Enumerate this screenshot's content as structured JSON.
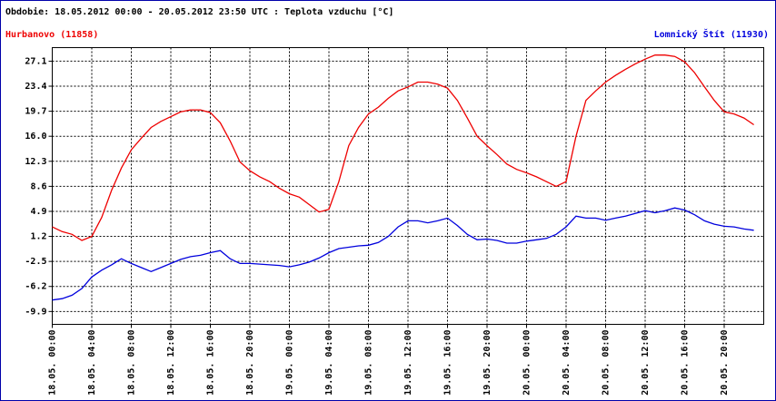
{
  "chart_data": {
    "type": "line",
    "title": "Obdobie: 18.05.2012 00:00 - 20.05.2012 23:50 UTC : Teplota vzduchu [°C]",
    "x": [
      "18.05. 00:00",
      "18.05. 01:00",
      "18.05. 02:00",
      "18.05. 03:00",
      "18.05. 04:00",
      "18.05. 05:00",
      "18.05. 06:00",
      "18.05. 07:00",
      "18.05. 08:00",
      "18.05. 09:00",
      "18.05. 10:00",
      "18.05. 11:00",
      "18.05. 12:00",
      "18.05. 13:00",
      "18.05. 14:00",
      "18.05. 15:00",
      "18.05. 16:00",
      "18.05. 17:00",
      "18.05. 18:00",
      "18.05. 19:00",
      "18.05. 20:00",
      "18.05. 21:00",
      "18.05. 22:00",
      "18.05. 23:00",
      "19.05. 00:00",
      "19.05. 01:00",
      "19.05. 02:00",
      "19.05. 03:00",
      "19.05. 04:00",
      "19.05. 05:00",
      "19.05. 06:00",
      "19.05. 07:00",
      "19.05. 08:00",
      "19.05. 09:00",
      "19.05. 10:00",
      "19.05. 11:00",
      "19.05. 12:00",
      "19.05. 13:00",
      "19.05. 14:00",
      "19.05. 15:00",
      "19.05. 16:00",
      "19.05. 17:00",
      "19.05. 18:00",
      "19.05. 19:00",
      "19.05. 20:00",
      "19.05. 21:00",
      "19.05. 22:00",
      "19.05. 23:00",
      "20.05. 00:00",
      "20.05. 01:00",
      "20.05. 02:00",
      "20.05. 03:00",
      "20.05. 04:00",
      "20.05. 05:00",
      "20.05. 06:00",
      "20.05. 07:00",
      "20.05. 08:00",
      "20.05. 09:00",
      "20.05. 10:00",
      "20.05. 11:00",
      "20.05. 12:00",
      "20.05. 13:00",
      "20.05. 14:00",
      "20.05. 15:00",
      "20.05. 16:00",
      "20.05. 17:00",
      "20.05. 18:00",
      "20.05. 19:00",
      "20.05. 20:00",
      "20.05. 21:00",
      "20.05. 22:00",
      "20.05. 23:00"
    ],
    "xticks": [
      "18.05. 00:00",
      "18.05. 04:00",
      "18.05. 08:00",
      "18.05. 12:00",
      "18.05. 16:00",
      "18.05. 20:00",
      "19.05. 00:00",
      "19.05. 04:00",
      "19.05. 08:00",
      "19.05. 12:00",
      "19.05. 16:00",
      "19.05. 20:00",
      "20.05. 00:00",
      "20.05. 04:00",
      "20.05. 08:00",
      "20.05. 12:00",
      "20.05. 16:00",
      "20.05. 20:00"
    ],
    "ylim": [
      -11.8,
      29.1
    ],
    "yticks": [
      27.1,
      23.4,
      19.7,
      {
        "value": 16,
        "label": "16.0"
      },
      12.3,
      8.6,
      4.9,
      1.2,
      -2.5,
      -6.2,
      -9.9
    ],
    "grid": true,
    "series": [
      {
        "name": "Hurbanovo (11858)",
        "color": "#ee0000",
        "legend": "left",
        "values": [
          2.6,
          1.9,
          1.5,
          0.6,
          1.2,
          4.0,
          8.0,
          11.3,
          14.0,
          15.7,
          17.3,
          18.2,
          18.9,
          19.6,
          19.9,
          19.9,
          19.5,
          18.0,
          15.3,
          12.2,
          10.9,
          10.0,
          9.3,
          8.3,
          7.5,
          7.0,
          5.9,
          4.8,
          5.2,
          9.3,
          14.6,
          17.3,
          19.3,
          20.3,
          21.6,
          22.7,
          23.3,
          24.0,
          24.0,
          23.7,
          23.1,
          21.3,
          18.7,
          16.0,
          14.6,
          13.3,
          11.9,
          11.1,
          10.6,
          10.0,
          9.3,
          8.6,
          9.3,
          16.0,
          21.3,
          22.7,
          24.0,
          25.0,
          25.9,
          26.7,
          27.4,
          28.0,
          28.0,
          27.8,
          27.0,
          25.4,
          23.3,
          21.3,
          19.6,
          19.3,
          18.7,
          17.7
        ]
      },
      {
        "name": "Lomnický Štít (11930)",
        "color": "#0000dd",
        "legend": "right",
        "values": [
          -8.2,
          -8.0,
          -7.5,
          -6.5,
          -4.8,
          -3.8,
          -3.0,
          -2.1,
          -2.8,
          -3.4,
          -4.0,
          -3.4,
          -2.8,
          -2.2,
          -1.8,
          -1.6,
          -1.2,
          -0.9,
          -2.1,
          -2.8,
          -2.8,
          -2.9,
          -3.0,
          -3.1,
          -3.3,
          -3.0,
          -2.6,
          -2.0,
          -1.2,
          -0.6,
          -0.4,
          -0.2,
          -0.1,
          0.3,
          1.2,
          2.6,
          3.5,
          3.5,
          3.2,
          3.5,
          3.9,
          2.8,
          1.5,
          0.7,
          0.8,
          0.6,
          0.2,
          0.2,
          0.5,
          0.7,
          0.9,
          1.5,
          2.6,
          4.2,
          3.9,
          3.9,
          3.6,
          3.9,
          4.2,
          4.6,
          5.0,
          4.7,
          5.0,
          5.4,
          5.1,
          4.4,
          3.5,
          3.0,
          2.7,
          2.6,
          2.3,
          2.1
        ]
      }
    ]
  }
}
